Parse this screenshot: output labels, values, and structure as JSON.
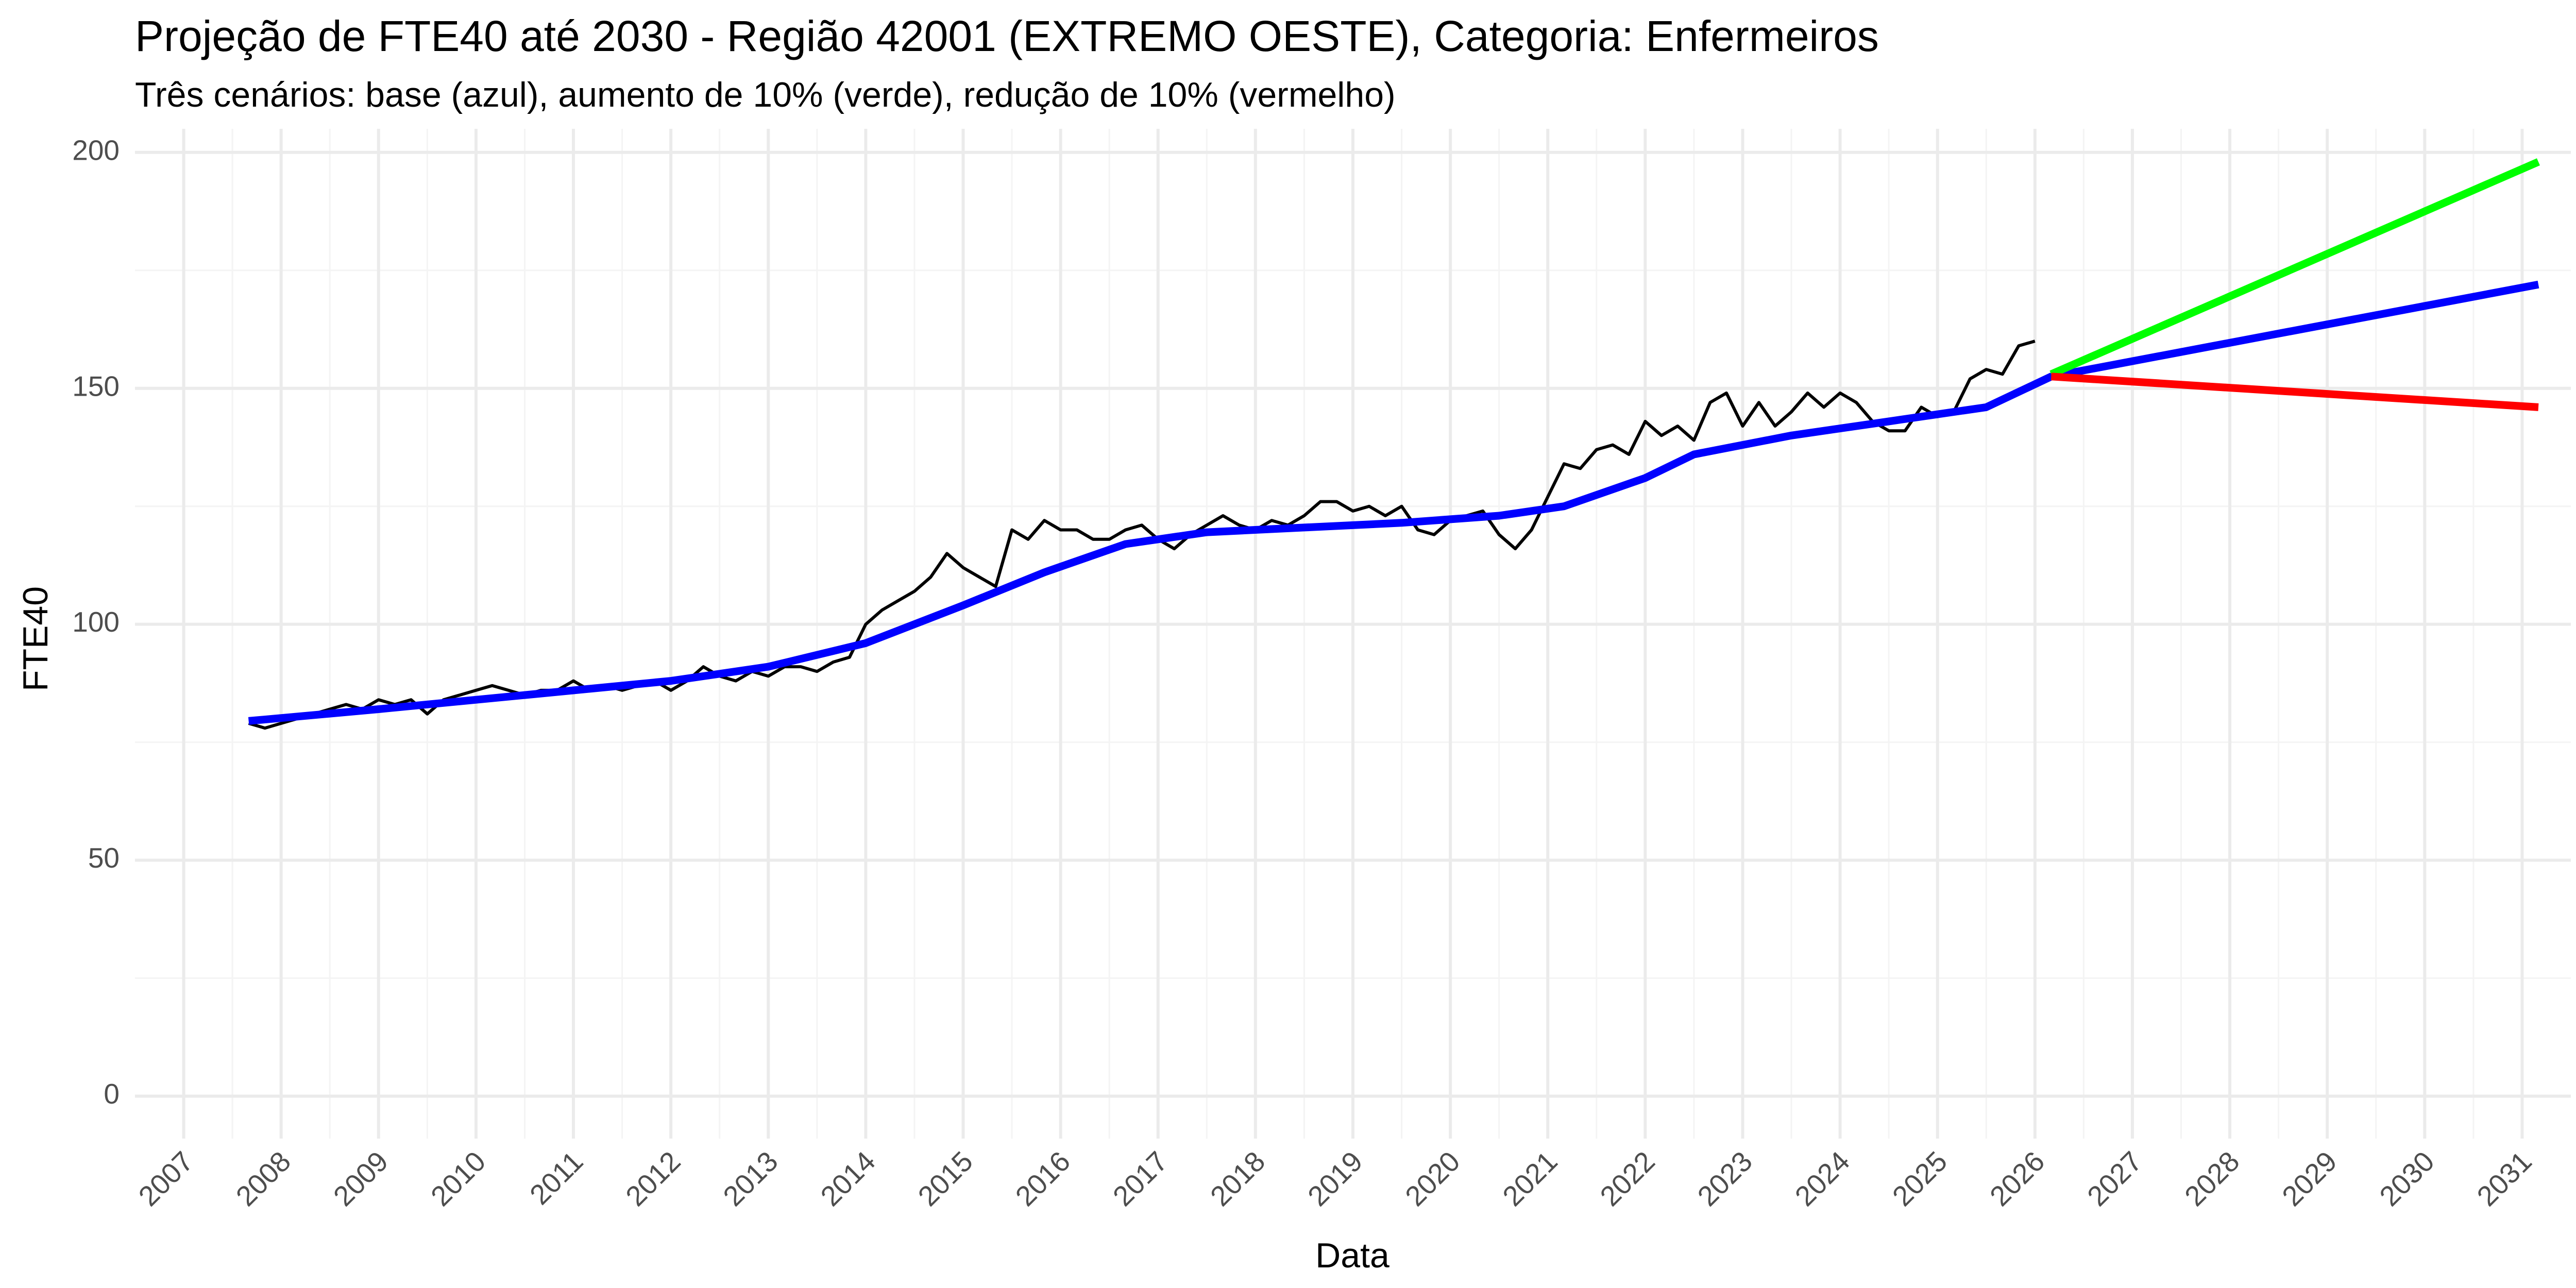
{
  "chart_data": {
    "type": "line",
    "title": "Projeção de FTE40 até 2030 - Região 42001 (EXTREMO OESTE), Categoria: Enfermeiros",
    "subtitle": "Três cenários: base (azul), aumento de 10% (verde), redução de 10% (vermelho)",
    "xlabel": "Data",
    "ylabel": "FTE40",
    "xlim": [
      "2006-07-01",
      "2031-07-01"
    ],
    "ylim": [
      -9,
      205
    ],
    "y_ticks": [
      0,
      50,
      100,
      150,
      200
    ],
    "x_ticks": [
      "2007",
      "2008",
      "2009",
      "2010",
      "2011",
      "2012",
      "2013",
      "2014",
      "2015",
      "2016",
      "2017",
      "2018",
      "2019",
      "2020",
      "2021",
      "2022",
      "2023",
      "2024",
      "2025",
      "2026",
      "2027",
      "2028",
      "2029",
      "2030",
      "2031"
    ],
    "grid": true,
    "colors": {
      "observed": "#000000",
      "base": "#0000ff",
      "up": "#00ff00",
      "down": "#ff0000",
      "grid_major": "#ebebeb",
      "grid_minor": "#f4f4f4",
      "tick_text": "#4d4d4d"
    },
    "series": [
      {
        "key": "observed",
        "values": [
          [
            "2007-09-01",
            79
          ],
          [
            "2007-11-01",
            78
          ],
          [
            "2008-01-01",
            79
          ],
          [
            "2008-03-01",
            80
          ],
          [
            "2008-05-01",
            81
          ],
          [
            "2008-07-01",
            82
          ],
          [
            "2008-09-01",
            83
          ],
          [
            "2008-11-01",
            82
          ],
          [
            "2009-01-01",
            84
          ],
          [
            "2009-03-01",
            83
          ],
          [
            "2009-05-01",
            84
          ],
          [
            "2009-07-01",
            81
          ],
          [
            "2009-09-01",
            84
          ],
          [
            "2009-11-01",
            85
          ],
          [
            "2010-01-01",
            86
          ],
          [
            "2010-03-01",
            87
          ],
          [
            "2010-05-01",
            86
          ],
          [
            "2010-07-01",
            85
          ],
          [
            "2010-09-01",
            86
          ],
          [
            "2010-11-01",
            86
          ],
          [
            "2011-01-01",
            88
          ],
          [
            "2011-03-01",
            86
          ],
          [
            "2011-05-01",
            87
          ],
          [
            "2011-07-01",
            86
          ],
          [
            "2011-09-01",
            87
          ],
          [
            "2011-11-01",
            88
          ],
          [
            "2012-01-01",
            86
          ],
          [
            "2012-03-01",
            88
          ],
          [
            "2012-05-01",
            91
          ],
          [
            "2012-07-01",
            89
          ],
          [
            "2012-09-01",
            88
          ],
          [
            "2012-11-01",
            90
          ],
          [
            "2013-01-01",
            89
          ],
          [
            "2013-03-01",
            91
          ],
          [
            "2013-05-01",
            91
          ],
          [
            "2013-07-01",
            90
          ],
          [
            "2013-09-01",
            92
          ],
          [
            "2013-11-01",
            93
          ],
          [
            "2014-01-01",
            100
          ],
          [
            "2014-03-01",
            103
          ],
          [
            "2014-05-01",
            105
          ],
          [
            "2014-07-01",
            107
          ],
          [
            "2014-09-01",
            110
          ],
          [
            "2014-11-01",
            115
          ],
          [
            "2015-01-01",
            112
          ],
          [
            "2015-03-01",
            110
          ],
          [
            "2015-05-01",
            108
          ],
          [
            "2015-07-01",
            120
          ],
          [
            "2015-09-01",
            118
          ],
          [
            "2015-11-01",
            122
          ],
          [
            "2016-01-01",
            120
          ],
          [
            "2016-03-01",
            120
          ],
          [
            "2016-05-01",
            118
          ],
          [
            "2016-07-01",
            118
          ],
          [
            "2016-09-01",
            120
          ],
          [
            "2016-11-01",
            121
          ],
          [
            "2017-01-01",
            118
          ],
          [
            "2017-03-01",
            116
          ],
          [
            "2017-05-01",
            119
          ],
          [
            "2017-07-01",
            121
          ],
          [
            "2017-09-01",
            123
          ],
          [
            "2017-11-01",
            121
          ],
          [
            "2018-01-01",
            120
          ],
          [
            "2018-03-01",
            122
          ],
          [
            "2018-05-01",
            121
          ],
          [
            "2018-07-01",
            123
          ],
          [
            "2018-09-01",
            126
          ],
          [
            "2018-11-01",
            126
          ],
          [
            "2019-01-01",
            124
          ],
          [
            "2019-03-01",
            125
          ],
          [
            "2019-05-01",
            123
          ],
          [
            "2019-07-01",
            125
          ],
          [
            "2019-09-01",
            120
          ],
          [
            "2019-11-01",
            119
          ],
          [
            "2020-01-01",
            122
          ],
          [
            "2020-03-01",
            123
          ],
          [
            "2020-05-01",
            124
          ],
          [
            "2020-07-01",
            119
          ],
          [
            "2020-09-01",
            116
          ],
          [
            "2020-11-01",
            120
          ],
          [
            "2021-01-01",
            127
          ],
          [
            "2021-03-01",
            134
          ],
          [
            "2021-05-01",
            133
          ],
          [
            "2021-07-01",
            137
          ],
          [
            "2021-09-01",
            138
          ],
          [
            "2021-11-01",
            136
          ],
          [
            "2022-01-01",
            143
          ],
          [
            "2022-03-01",
            140
          ],
          [
            "2022-05-01",
            142
          ],
          [
            "2022-07-01",
            139
          ],
          [
            "2022-09-01",
            147
          ],
          [
            "2022-11-01",
            149
          ],
          [
            "2023-01-01",
            142
          ],
          [
            "2023-03-01",
            147
          ],
          [
            "2023-05-01",
            142
          ],
          [
            "2023-07-01",
            145
          ],
          [
            "2023-09-01",
            149
          ],
          [
            "2023-11-01",
            146
          ],
          [
            "2024-01-01",
            149
          ],
          [
            "2024-03-01",
            147
          ],
          [
            "2024-05-01",
            143
          ],
          [
            "2024-07-01",
            141
          ],
          [
            "2024-09-01",
            141
          ],
          [
            "2024-11-01",
            146
          ],
          [
            "2025-01-01",
            144
          ],
          [
            "2025-03-01",
            145
          ],
          [
            "2025-05-01",
            152
          ],
          [
            "2025-07-01",
            154
          ],
          [
            "2025-09-01",
            153
          ],
          [
            "2025-11-01",
            159
          ],
          [
            "2026-01-01",
            160
          ]
        ]
      },
      {
        "key": "base",
        "values": [
          [
            "2007-09-01",
            79.5
          ],
          [
            "2009-01-01",
            82
          ],
          [
            "2010-07-01",
            85
          ],
          [
            "2012-01-01",
            88
          ],
          [
            "2013-01-01",
            91
          ],
          [
            "2014-01-01",
            96
          ],
          [
            "2015-01-01",
            104
          ],
          [
            "2015-11-01",
            111
          ],
          [
            "2016-09-01",
            117
          ],
          [
            "2017-07-01",
            119.5
          ],
          [
            "2018-07-01",
            120.5
          ],
          [
            "2019-07-01",
            121.5
          ],
          [
            "2020-07-01",
            123
          ],
          [
            "2021-03-01",
            125
          ],
          [
            "2022-01-01",
            131
          ],
          [
            "2022-07-01",
            136
          ],
          [
            "2023-07-01",
            140
          ],
          [
            "2024-07-01",
            143
          ],
          [
            "2025-07-01",
            146
          ],
          [
            "2026-03-01",
            152.5
          ],
          [
            "2031-03-01",
            172
          ]
        ]
      },
      {
        "key": "up",
        "values": [
          [
            "2026-03-01",
            153
          ],
          [
            "2031-03-01",
            198
          ]
        ]
      },
      {
        "key": "down",
        "values": [
          [
            "2026-03-01",
            152.5
          ],
          [
            "2031-03-01",
            146
          ]
        ]
      }
    ]
  }
}
